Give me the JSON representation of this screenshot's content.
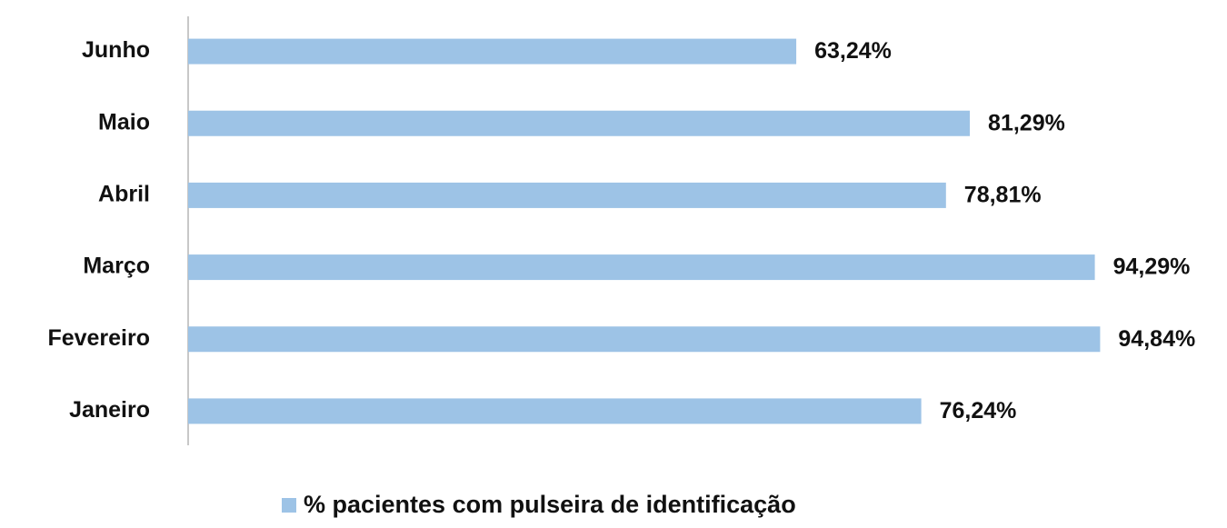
{
  "chart_data": {
    "type": "bar",
    "orientation": "horizontal",
    "categories": [
      "Junho",
      "Maio",
      "Abril",
      "Março",
      "Fevereiro",
      "Janeiro"
    ],
    "series": [
      {
        "name": "% pacientes com pulseira de identificação",
        "color": "#9dc3e6",
        "values": [
          63.24,
          81.29,
          78.81,
          94.29,
          94.84,
          76.24
        ],
        "value_labels": [
          "63,24%",
          "81,29%",
          "78,81%",
          "94,29%",
          "94,84%",
          "76,24%"
        ]
      }
    ],
    "xlim": [
      0,
      100
    ],
    "legend": "bottom"
  }
}
